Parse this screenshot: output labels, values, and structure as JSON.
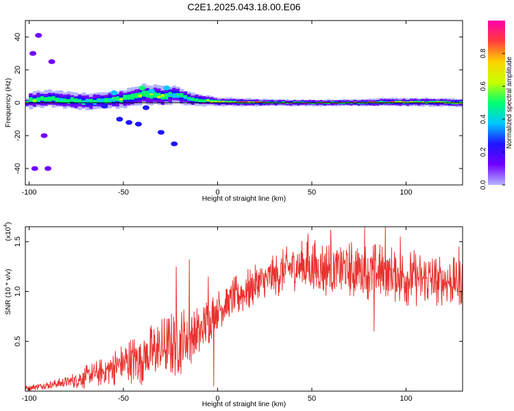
{
  "title": "C2E1.2025.043.18.00.E06",
  "colors": {
    "snr_line": "#e8322e",
    "axis": "#000000"
  },
  "chart_data": [
    {
      "type": "heatmap",
      "xlabel": "Height of straight line (km)",
      "ylabel": "Frequency (Hz)",
      "xlim": [
        -102,
        130
      ],
      "ylim": [
        -50,
        50
      ],
      "x_ticks": [
        "-100",
        "-50",
        "0",
        "50",
        "100"
      ],
      "y_ticks": [
        "-40",
        "-20",
        "0",
        "20",
        "40"
      ],
      "colorbar": {
        "label": "Normalized spectral amplitude",
        "ticks": [
          "0.0",
          "0.2",
          "0.4",
          "0.6",
          "0.8"
        ],
        "range": [
          0,
          1
        ],
        "colormap": [
          "#b4b4ff",
          "#7000ff",
          "#1e14ff",
          "#00c8ff",
          "#00ff6e",
          "#c8ff00",
          "#ffd200",
          "#ff3c3c",
          "#ff00aa"
        ]
      },
      "ridge": [
        {
          "x": -100,
          "y": 1.5,
          "w": 5,
          "a": 0.55
        },
        {
          "x": -90,
          "y": 2.5,
          "w": 5,
          "a": 0.5
        },
        {
          "x": -80,
          "y": 1.5,
          "w": 5,
          "a": 0.5
        },
        {
          "x": -70,
          "y": 0.5,
          "w": 5,
          "a": 0.45
        },
        {
          "x": -60,
          "y": 1.5,
          "w": 5,
          "a": 0.45
        },
        {
          "x": -50,
          "y": 2.5,
          "w": 5.5,
          "a": 0.5
        },
        {
          "x": -40,
          "y": 5,
          "w": 6,
          "a": 0.55
        },
        {
          "x": -30,
          "y": 4,
          "w": 6,
          "a": 0.5
        },
        {
          "x": -22,
          "y": 5,
          "w": 5,
          "a": 0.45
        },
        {
          "x": -15,
          "y": 2,
          "w": 4,
          "a": 0.5
        },
        {
          "x": -5,
          "y": 1,
          "w": 3,
          "a": 0.6
        },
        {
          "x": 0,
          "y": 0.5,
          "w": 2.5,
          "a": 0.75
        },
        {
          "x": 10,
          "y": 0.5,
          "w": 2.5,
          "a": 0.8
        },
        {
          "x": 30,
          "y": 0,
          "w": 2,
          "a": 0.9
        },
        {
          "x": 50,
          "y": 0,
          "w": 2,
          "a": 0.92
        },
        {
          "x": 70,
          "y": 0,
          "w": 2,
          "a": 0.85
        },
        {
          "x": 90,
          "y": 0.3,
          "w": 2.5,
          "a": 0.8
        },
        {
          "x": 110,
          "y": 0.3,
          "w": 2.5,
          "a": 0.75
        },
        {
          "x": 130,
          "y": 0,
          "w": 2.5,
          "a": 0.7
        }
      ],
      "blobs": [
        {
          "x": -40,
          "y": 9,
          "a": 0.45
        },
        {
          "x": -35,
          "y": 7,
          "a": 0.4
        },
        {
          "x": -27,
          "y": 9,
          "a": 0.4
        },
        {
          "x": -55,
          "y": 6,
          "a": 0.35
        },
        {
          "x": -38,
          "y": -3,
          "a": 0.3
        },
        {
          "x": -60,
          "y": -2,
          "a": 0.3
        },
        {
          "x": -52,
          "y": -10,
          "a": 0.3
        },
        {
          "x": -47,
          "y": -12,
          "a": 0.3
        },
        {
          "x": -42,
          "y": -13,
          "a": 0.28
        },
        {
          "x": -30,
          "y": -18,
          "a": 0.28
        },
        {
          "x": -23,
          "y": -25,
          "a": 0.2
        },
        {
          "x": -95,
          "y": 41,
          "a": 0.15
        },
        {
          "x": -98,
          "y": 30,
          "a": 0.15
        },
        {
          "x": -92,
          "y": -20,
          "a": 0.12
        },
        {
          "x": -97,
          "y": -40,
          "a": 0.12
        },
        {
          "x": -90,
          "y": -40,
          "a": 0.1
        },
        {
          "x": -88,
          "y": 25,
          "a": 0.1
        }
      ]
    },
    {
      "type": "line",
      "xlabel": "Height of straight line (km)",
      "ylabel": "SNR (10 * v/v)",
      "y_multiplier": "(x10",
      "y_multiplier_exp": "4",
      "xlim": [
        -102,
        130
      ],
      "ylim": [
        0,
        1.65
      ],
      "x_ticks": [
        "-100",
        "-50",
        "0",
        "50",
        "100"
      ],
      "y_ticks": [
        "0.5",
        "1.0",
        "1.5"
      ],
      "series": [
        {
          "x": [
            -102,
            -90,
            -80,
            -70,
            -60,
            -50,
            -40,
            -30,
            -20,
            -10,
            -5,
            0,
            10,
            20,
            30,
            40,
            50,
            60,
            70,
            80,
            90,
            100,
            110,
            120,
            130
          ],
          "base": [
            0.03,
            0.06,
            0.09,
            0.14,
            0.2,
            0.28,
            0.34,
            0.42,
            0.5,
            0.58,
            0.7,
            0.82,
            0.95,
            1.05,
            1.15,
            1.25,
            1.25,
            1.22,
            1.22,
            1.2,
            1.18,
            1.15,
            1.12,
            1.1,
            1.1
          ],
          "spread": [
            0.03,
            0.04,
            0.06,
            0.12,
            0.15,
            0.22,
            0.28,
            0.32,
            0.35,
            0.3,
            0.25,
            0.2,
            0.22,
            0.22,
            0.22,
            0.25,
            0.28,
            0.3,
            0.3,
            0.3,
            0.3,
            0.3,
            0.28,
            0.25,
            0.25
          ],
          "peaks": [
            [
              -22,
              1.25
            ],
            [
              -15,
              1.32
            ],
            [
              -5,
              1.15
            ],
            [
              48,
              1.58
            ],
            [
              60,
              1.62
            ],
            [
              78,
              1.65
            ],
            [
              89,
              1.65
            ],
            [
              97,
              1.55
            ],
            [
              128,
              1.45
            ],
            [
              -2,
              0.05
            ],
            [
              83,
              0.6
            ],
            [
              130,
              0.7
            ]
          ]
        }
      ]
    }
  ]
}
